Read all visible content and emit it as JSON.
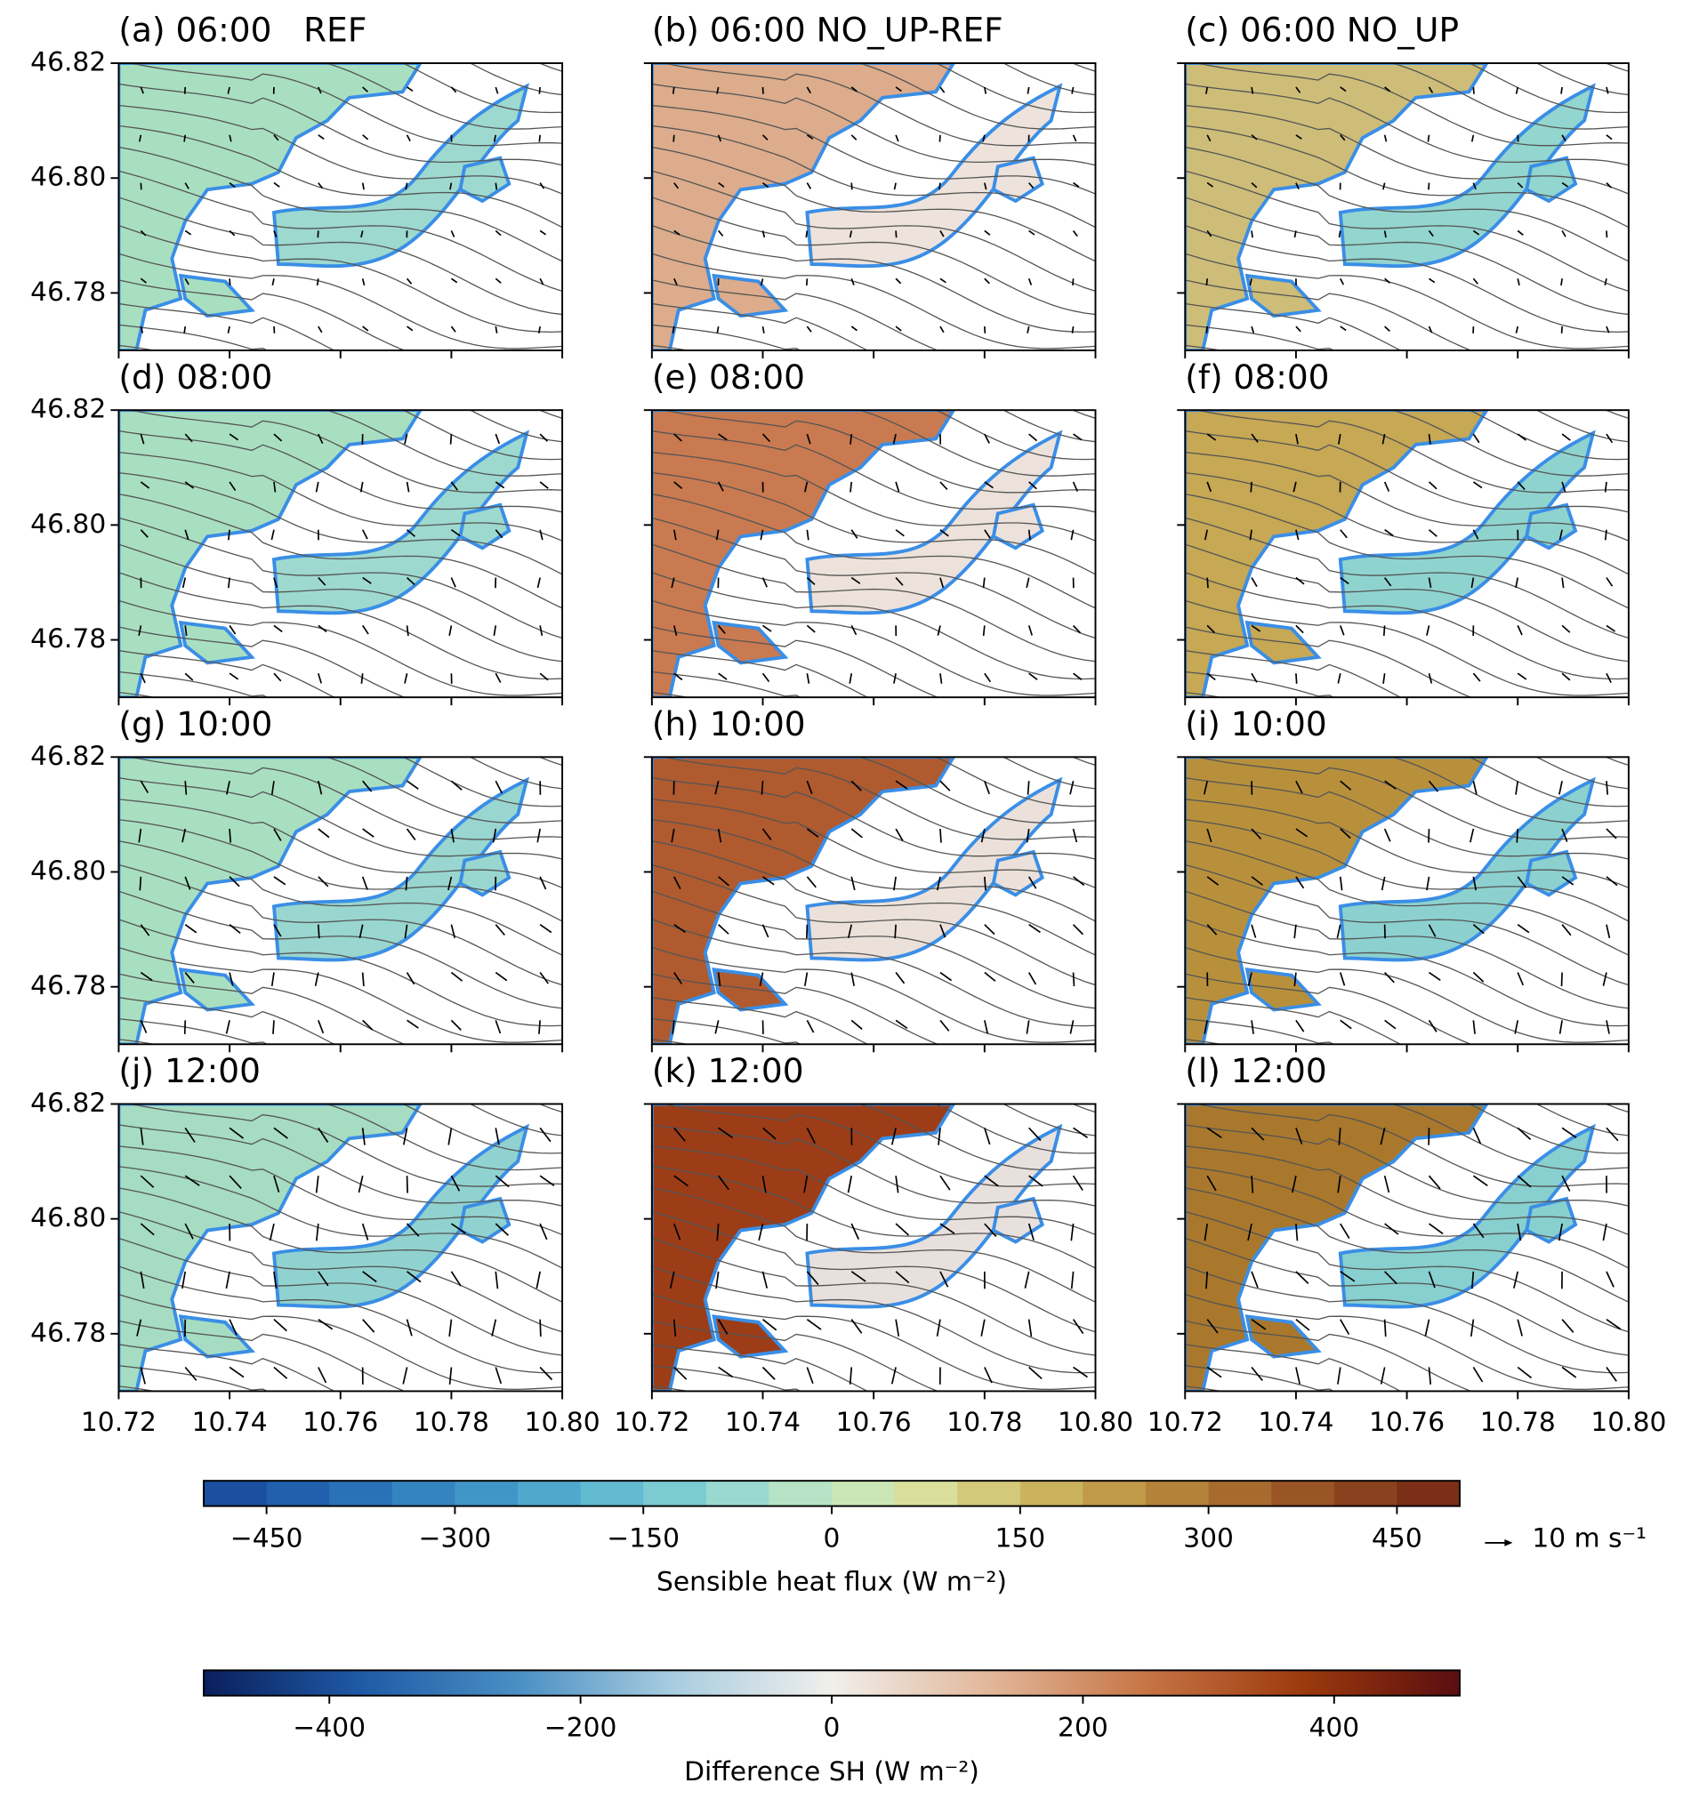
{
  "chart_data": {
    "type": "map-panels",
    "panels": [
      {
        "title": "(a) 06:00   REF",
        "colors": [
          "#a9dfc1",
          "#9dd9cf"
        ]
      },
      {
        "title": "(b) 06:00 NO_UP-REF",
        "colors": [
          "#dcac8c",
          "#ede3dc"
        ]
      },
      {
        "title": "(c) 06:00 NO_UP",
        "colors": [
          "#cdbd78",
          "#93d5cf"
        ]
      },
      {
        "title": "(d) 08:00",
        "colors": [
          "#a9dfc1",
          "#9dd9cf"
        ]
      },
      {
        "title": "(e) 08:00",
        "colors": [
          "#c97a50",
          "#ece2db"
        ]
      },
      {
        "title": "(f) 08:00",
        "colors": [
          "#c6a855",
          "#8fd3cf"
        ]
      },
      {
        "title": "(g) 10:00",
        "colors": [
          "#a9dfc1",
          "#99d6cf"
        ]
      },
      {
        "title": "(h) 10:00",
        "colors": [
          "#b05a2f",
          "#ebe1da"
        ]
      },
      {
        "title": "(i) 10:00",
        "colors": [
          "#b8903c",
          "#8cd1cf"
        ]
      },
      {
        "title": "(j) 12:00",
        "colors": [
          "#a5dcc2",
          "#90d2cf"
        ]
      },
      {
        "title": "(k) 12:00",
        "colors": [
          "#9c3d18",
          "#e8e0dc"
        ]
      },
      {
        "title": "(l) 12:00",
        "colors": [
          "#a9782c",
          "#88cfcf"
        ]
      }
    ],
    "xlim": [
      10.72,
      10.8
    ],
    "xticks": [
      10.72,
      10.74,
      10.76,
      10.78,
      {
        "value": 10.8,
        "label": "10.80"
      }
    ],
    "ylim": [
      46.77,
      46.82
    ],
    "yticks": [
      46.78,
      {
        "value": 46.8,
        "label": "46.80"
      },
      46.82
    ],
    "coast_color": "#3a8ee6",
    "vector_key": "10 m s⁻¹",
    "colorbars": [
      {
        "label": "Sensible heat flux (W m⁻²)",
        "lim": [
          -500,
          500
        ],
        "ticks": [
          {
            "value": -450,
            "label": "−450"
          },
          {
            "value": -300,
            "label": "−300"
          },
          {
            "value": -150,
            "label": "−150"
          },
          0,
          150,
          300,
          450
        ],
        "style": "discrete",
        "colors": [
          "#1b4fa0",
          "#2160ac",
          "#2a72b8",
          "#3584c2",
          "#4196c8",
          "#50a9cd",
          "#62bbd0",
          "#7ccbd2",
          "#9ad9cf",
          "#b6e3c5",
          "#cbe6b5",
          "#d9df9a",
          "#d4c97a",
          "#cbb35e",
          "#c09a48",
          "#b5823a",
          "#a86b2f",
          "#9a5526",
          "#8a411e",
          "#7a2f16"
        ]
      },
      {
        "label": "Difference SH (W m⁻²)",
        "lim": [
          -500,
          500
        ],
        "ticks": [
          {
            "value": -400,
            "label": "−400"
          },
          {
            "value": -200,
            "label": "−200"
          },
          0,
          200,
          400
        ],
        "style": "gradient",
        "colors": [
          "#0a1f5c",
          "#1f5aa6",
          "#4a8fc4",
          "#a9cde0",
          "#f1efec",
          "#e2b79b",
          "#c77545",
          "#9c3a0e",
          "#5a0e10"
        ]
      }
    ]
  }
}
